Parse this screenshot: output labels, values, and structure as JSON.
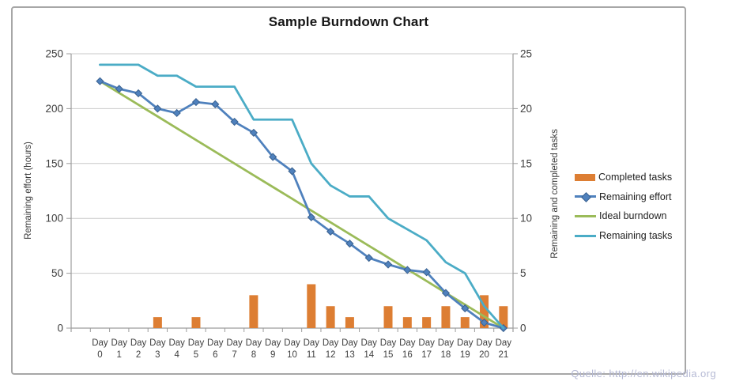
{
  "chart_data": {
    "type": "combo",
    "title": "Sample Burndown Chart",
    "categories": [
      "Day 0",
      "Day 1",
      "Day 2",
      "Day 3",
      "Day 4",
      "Day 5",
      "Day 6",
      "Day 7",
      "Day 8",
      "Day 9",
      "Day 10",
      "Day 11",
      "Day 12",
      "Day 13",
      "Day 14",
      "Day 15",
      "Day 16",
      "Day 17",
      "Day 18",
      "Day 19",
      "Day 20",
      "Day 21"
    ],
    "left_axis": {
      "label": "Remaining effort (hours)",
      "min": 0,
      "max": 250,
      "ticks": [
        0,
        50,
        100,
        150,
        200,
        250
      ]
    },
    "right_axis": {
      "label": "Remaining and  completed tasks",
      "min": 0,
      "max": 25,
      "ticks": [
        0,
        5,
        10,
        15,
        20,
        25
      ]
    },
    "grid": true,
    "legend_position": "right",
    "series": [
      {
        "name": "Completed tasks",
        "type": "bar",
        "axis": "right",
        "color": "#DD7E33",
        "values": [
          0,
          0,
          0,
          1,
          0,
          1,
          0,
          0,
          3,
          0,
          0,
          4,
          2,
          1,
          0,
          2,
          1,
          1,
          2,
          1,
          3,
          2
        ]
      },
      {
        "name": "Remaining effort",
        "type": "line",
        "axis": "left",
        "color": "#4F81BD",
        "marker": "diamond",
        "marker_stroke": "#3A618F",
        "values": [
          225,
          218,
          214,
          200,
          196,
          206,
          204,
          188,
          178,
          156,
          143,
          101,
          88,
          77,
          64,
          58,
          53,
          51,
          32,
          18,
          5,
          0
        ]
      },
      {
        "name": "Ideal burndown",
        "type": "line",
        "axis": "left",
        "color": "#9BBB59",
        "values": [
          225,
          214.3,
          203.6,
          192.9,
          182.1,
          171.4,
          160.7,
          150,
          139.3,
          128.6,
          117.9,
          107.1,
          96.4,
          85.7,
          75,
          64.3,
          53.6,
          42.9,
          32.1,
          21.4,
          10.7,
          0
        ]
      },
      {
        "name": "Remaining tasks",
        "type": "line",
        "axis": "right",
        "color": "#4BACC6",
        "values": [
          24,
          24,
          24,
          23,
          23,
          22,
          22,
          22,
          19,
          19,
          19,
          15,
          13,
          12,
          12,
          10,
          9,
          8,
          6,
          5,
          2,
          0
        ]
      }
    ],
    "x_label_word": "Day"
  },
  "watermark": {
    "text": "Quelle: http://en.wikipedia.org"
  },
  "colors": {
    "gridline": "#C9C9C9",
    "axis_line": "#9C9C9C",
    "tick_text": "#3F3F3F",
    "frame_border": "#A7A7A7",
    "watermark_text": "#B5B9D4"
  }
}
